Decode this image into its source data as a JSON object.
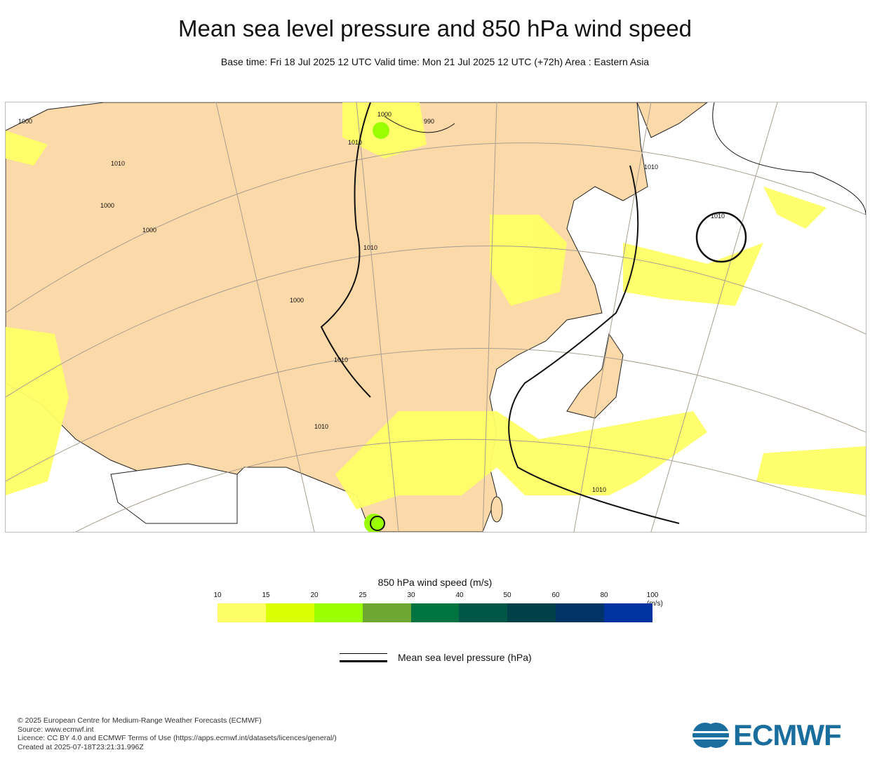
{
  "title": "Mean sea level pressure and 850 hPa wind speed",
  "subtitle": "Base time: Fri 18 Jul 2025 12 UTC Valid time: Mon 21 Jul 2025 12 UTC (+72h) Area : Eastern Asia",
  "map": {
    "area": "Eastern Asia",
    "colors": {
      "land": "#fcd9a8",
      "ocean": "#ffffff",
      "graticule": "#a89f90"
    },
    "contour_labels": [
      "1000",
      "1000",
      "1000",
      "1010",
      "990",
      "1010",
      "1010",
      "1010",
      "1000",
      "1010",
      "1010",
      "1010",
      "1010",
      "1000"
    ]
  },
  "colorbar": {
    "title": "850 hPa wind speed (m/s)",
    "ticks": [
      "10",
      "15",
      "20",
      "25",
      "30",
      "40",
      "50",
      "60",
      "80",
      "100"
    ],
    "unit": "(m/s)",
    "colors": [
      "#ffff66",
      "#d9ff00",
      "#99ff00",
      "#6ea832",
      "#007340",
      "#005747",
      "#004047",
      "#003366",
      "#0033a0"
    ]
  },
  "legend": {
    "pressure_label": "Mean sea level pressure (hPa)"
  },
  "footer": {
    "lines": [
      "© 2025 European Centre for Medium-Range Weather Forecasts (ECMWF)",
      "Source: www.ecmwf.int",
      "Licence: CC BY 4.0 and ECMWF Terms of Use (https://apps.ecmwf.int/datasets/licences/general/)",
      "Created at 2025-07-18T23:21:31.996Z"
    ],
    "logo": "ECMWF"
  }
}
